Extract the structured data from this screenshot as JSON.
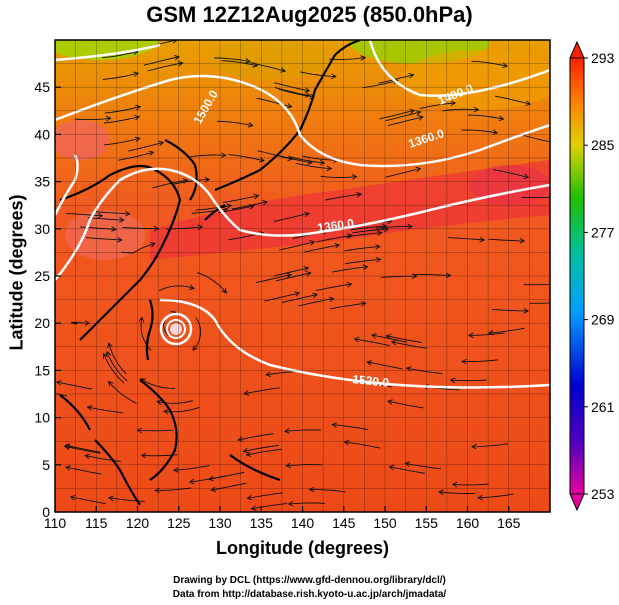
{
  "title": "GSM 12Z12Aug2025 (850.0hPa)",
  "x_axis": {
    "label": "Longitude (degrees)",
    "ticks": [
      "110",
      "115",
      "120",
      "125",
      "130",
      "135",
      "140",
      "145",
      "150",
      "155",
      "160",
      "165"
    ],
    "range": [
      110,
      170
    ]
  },
  "y_axis": {
    "label": "Latitude  (degrees)",
    "ticks": [
      "0",
      "5",
      "10",
      "15",
      "20",
      "25",
      "30",
      "35",
      "40",
      "45"
    ],
    "range": [
      0,
      50
    ]
  },
  "colorbar": {
    "labels": [
      "293",
      "285",
      "277",
      "269",
      "261",
      "253"
    ],
    "range": [
      253,
      293
    ]
  },
  "contour_labels": [
    "1500.0",
    "1400.0",
    "1360.0",
    "1360.0",
    "1520.0"
  ],
  "credits": {
    "line1": "Drawing by DCL (https://www.gfd-dennou.org/library/dcl/)",
    "line2": "Data from http://database.rish.kyoto-u.ac.jp/arch/jmadata/"
  }
}
